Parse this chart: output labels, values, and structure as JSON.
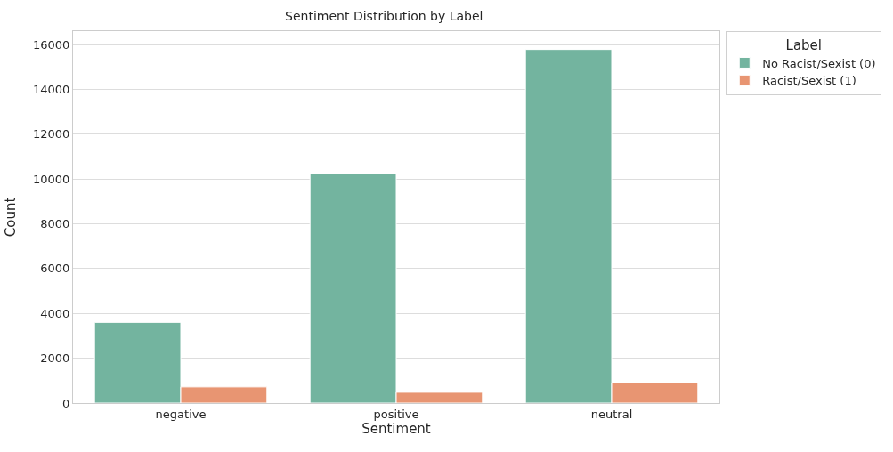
{
  "chart_data": {
    "type": "bar",
    "title": "Sentiment Distribution by Label",
    "xlabel": "Sentiment",
    "ylabel": "Count",
    "legend_title": "Label",
    "categories": [
      "negative",
      "positive",
      "neutral"
    ],
    "series": [
      {
        "name": "No Racist/Sexist (0)",
        "color": "#73b49f",
        "values": [
          3600,
          10240,
          15780
        ]
      },
      {
        "name": "Racist/Sexist (1)",
        "color": "#e89572",
        "values": [
          720,
          480,
          900
        ]
      }
    ],
    "ylim": [
      0,
      16600
    ],
    "yticks": [
      0,
      2000,
      4000,
      6000,
      8000,
      10000,
      12000,
      14000,
      16000
    ],
    "grid": "y",
    "legend": "top right"
  }
}
